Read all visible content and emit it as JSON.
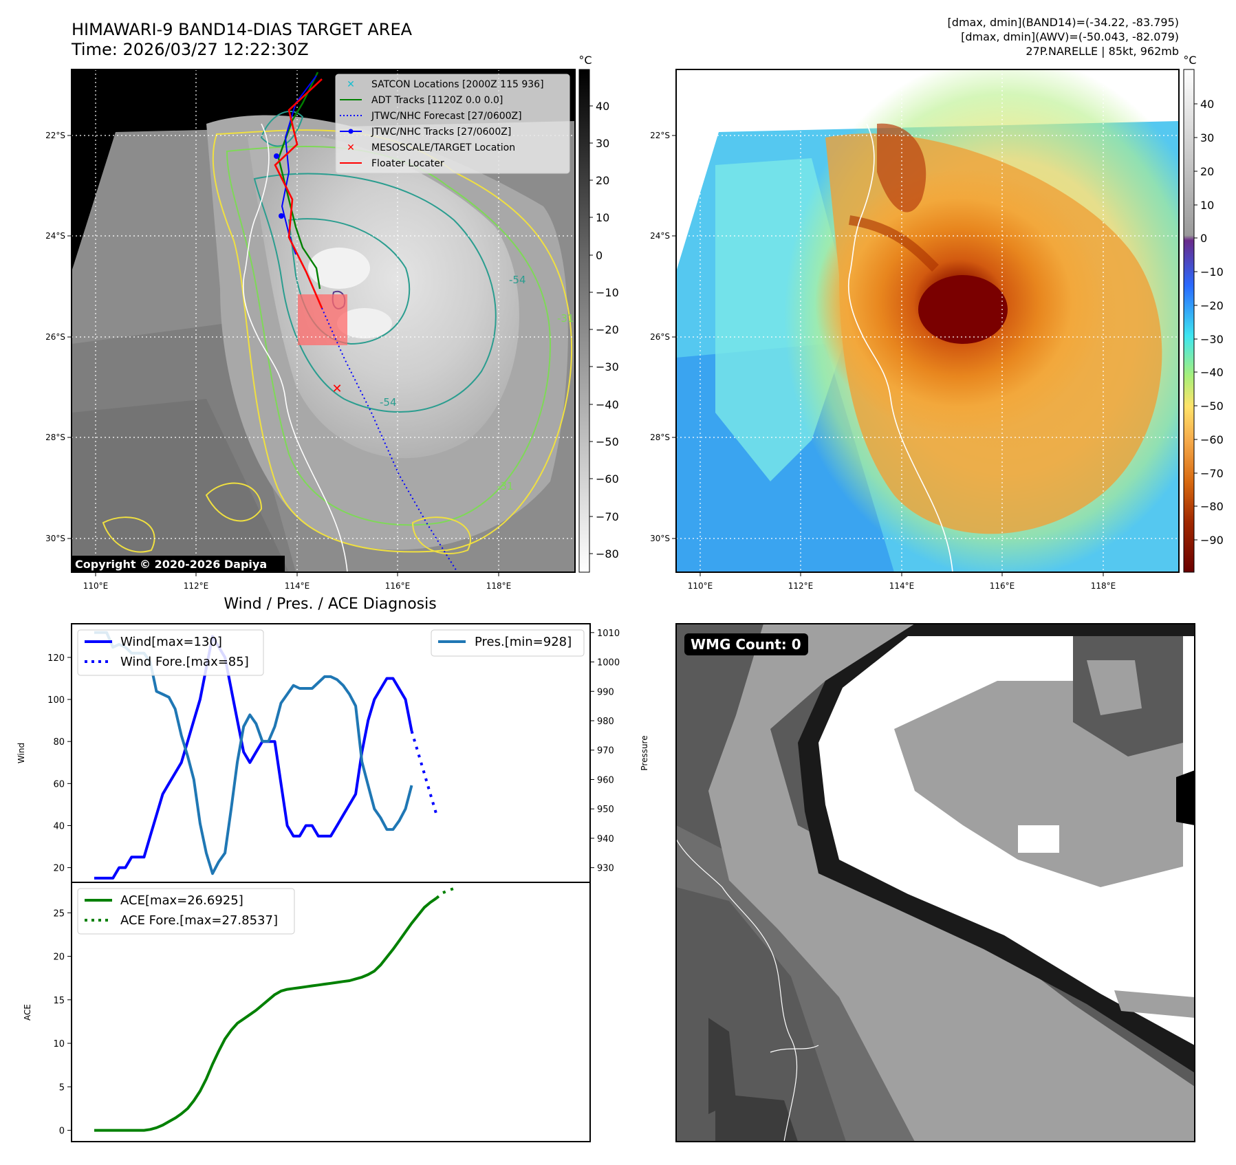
{
  "header": {
    "title_line1": "HIMAWARI-9 BAND14-DIAS TARGET AREA",
    "title_line2": "Time: 2026/03/27 12:22:30Z",
    "info_line1": "[dmax, dmin](BAND14)=(-34.22, -83.795)",
    "info_line2": "[dmax, dmin](AWV)=(-50.043, -82.079)",
    "info_line3": "27P.NARELLE | 85kt, 962mb"
  },
  "map": {
    "lon_labels": [
      "110°E",
      "112°E",
      "114°E",
      "116°E",
      "118°E"
    ],
    "lat_labels": [
      "22°S",
      "24°S",
      "26°S",
      "28°S",
      "30°S"
    ],
    "copyright": "Copyright © 2020-2026 Dapiya",
    "contour_labels": [
      "-54",
      "-31",
      "-54",
      "-31"
    ],
    "legend": [
      {
        "label": "SATCON Locations [2000Z 115 936]",
        "color": "#17becf",
        "marker": "x"
      },
      {
        "label": "ADT Tracks [1120Z 0.0 0.0]",
        "color": "#008000",
        "marker": "line"
      },
      {
        "label": "JTWC/NHC Forecast [27/0600Z]",
        "color": "#0000ff",
        "marker": "dotted"
      },
      {
        "label": "JTWC/NHC Tracks [27/0600Z]",
        "color": "#0000ff",
        "marker": "line-dot"
      },
      {
        "label": "MESOSCALE/TARGET Location",
        "color": "#ff0000",
        "marker": "x"
      },
      {
        "label": "Floater Locater",
        "color": "#ff0000",
        "marker": "line"
      }
    ]
  },
  "colorbar_gray": {
    "unit": "°C",
    "ticks": [
      "40",
      "30",
      "20",
      "10",
      "0",
      "−10",
      "−20",
      "−30",
      "−40",
      "−50",
      "−60",
      "−70",
      "−80"
    ]
  },
  "colorbar_color": {
    "unit": "°C",
    "ticks": [
      "40",
      "30",
      "20",
      "10",
      "0",
      "−10",
      "−20",
      "−30",
      "−40",
      "−50",
      "−60",
      "−70",
      "−80",
      "−90"
    ]
  },
  "diag": {
    "title": "Wind / Pres. / ACE Diagnosis",
    "wind_ylabel": "Wind",
    "pres_ylabel": "Pressure",
    "ace_ylabel": "ACE",
    "legend_wind": "Wind[max=130]",
    "legend_wind_fore": "Wind Fore.[max=85]",
    "legend_pres": "Pres.[min=928]",
    "legend_ace": "ACE[max=26.6925]",
    "legend_ace_fore": "ACE Fore.[max=27.8537]",
    "wind_ticks": [
      "20",
      "40",
      "60",
      "80",
      "100",
      "120"
    ],
    "pres_ticks": [
      "930",
      "940",
      "950",
      "960",
      "970",
      "980",
      "990",
      "1000",
      "1010"
    ],
    "ace_ticks": [
      "0",
      "5",
      "10",
      "15",
      "20",
      "25"
    ]
  },
  "wmg": {
    "label": "WMG Count: 0"
  },
  "chart_data": [
    {
      "type": "line",
      "title": "Wind / Pres. / ACE Diagnosis",
      "ylabel": "Wind",
      "ylim": [
        13,
        136
      ],
      "series": [
        {
          "name": "Wind[max=130]",
          "values": [
            15,
            15,
            15,
            15,
            20,
            20,
            25,
            25,
            25,
            35,
            45,
            55,
            60,
            65,
            70,
            80,
            90,
            100,
            115,
            130,
            125,
            120,
            105,
            90,
            75,
            70,
            75,
            80,
            80,
            80,
            60,
            40,
            35,
            35,
            40,
            40,
            35,
            35,
            35,
            40,
            45,
            50,
            55,
            75,
            90,
            100,
            105,
            110,
            110,
            105,
            100,
            85
          ]
        },
        {
          "name": "Wind Fore.[max=85]",
          "x_offset": 51,
          "values": [
            85,
            75,
            65,
            55,
            45
          ]
        }
      ]
    },
    {
      "type": "line",
      "ylabel": "Pressure",
      "ylim": [
        925,
        1013
      ],
      "series": [
        {
          "name": "Pres.[min=928]",
          "values": [
            1010,
            1010,
            1010,
            1005,
            1006,
            1005,
            1003,
            1003,
            1003,
            1000,
            990,
            989,
            988,
            984,
            975,
            968,
            960,
            945,
            935,
            928,
            932,
            935,
            950,
            966,
            978,
            982,
            979,
            973,
            973,
            978,
            986,
            989,
            992,
            991,
            991,
            991,
            993,
            995,
            995,
            994,
            992,
            989,
            985,
            966,
            958,
            950,
            947,
            943,
            943,
            946,
            950,
            958
          ]
        }
      ]
    },
    {
      "type": "line",
      "ylabel": "ACE",
      "ylim": [
        -1.3,
        28.5
      ],
      "series": [
        {
          "name": "ACE[max=26.6925]",
          "values": [
            0,
            0,
            0,
            0,
            0,
            0,
            0,
            0,
            0,
            0.1,
            0.3,
            0.6,
            1.0,
            1.4,
            1.9,
            2.5,
            3.4,
            4.5,
            5.9,
            7.6,
            9.1,
            10.5,
            11.5,
            12.3,
            12.8,
            13.3,
            13.8,
            14.4,
            15.0,
            15.6,
            16.0,
            16.2,
            16.3,
            16.4,
            16.5,
            16.6,
            16.7,
            16.8,
            16.9,
            17.0,
            17.1,
            17.2,
            17.4,
            17.6,
            17.9,
            18.3,
            19.0,
            19.9,
            20.8,
            21.8,
            22.8,
            23.8,
            24.7,
            25.6,
            26.2,
            26.7
          ]
        },
        {
          "name": "ACE Fore.[max=27.8537]",
          "x_offset": 55,
          "values": [
            26.7,
            27.3,
            27.6,
            27.85
          ]
        }
      ]
    }
  ]
}
